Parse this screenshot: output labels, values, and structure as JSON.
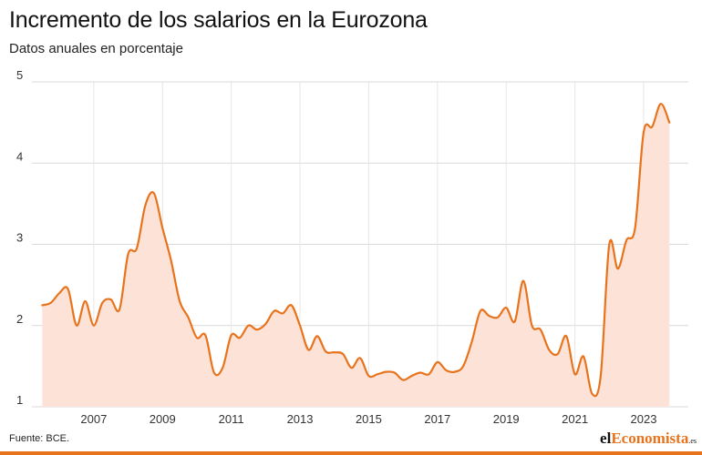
{
  "title": "Incremento de los salarios en la Eurozona",
  "subtitle": "Datos anuales en porcentaje",
  "source": "Fuente: BCE.",
  "logo": {
    "prefix": "el",
    "accent": "Economista",
    "tld": ".es"
  },
  "colors": {
    "line": "#e8731d",
    "fill": "#fde3d7",
    "grid": "#d9d9d9",
    "bottom_bar": "#e8731d"
  },
  "chart_data": {
    "type": "area",
    "title": "Incremento de los salarios en la Eurozona",
    "subtitle": "Datos anuales en porcentaje",
    "xlabel": "",
    "ylabel": "",
    "xlim": [
      2005.2,
      2024.3
    ],
    "ylim": [
      1,
      5
    ],
    "y_ticks": [
      1,
      2,
      3,
      4,
      5
    ],
    "x_ticks": [
      2007,
      2009,
      2011,
      2013,
      2015,
      2017,
      2019,
      2021,
      2023
    ],
    "grid": true,
    "series": [
      {
        "x": [
          2005.5,
          2005.75,
          2006.0,
          2006.25,
          2006.5,
          2006.75,
          2007.0,
          2007.25,
          2007.5,
          2007.75,
          2008.0,
          2008.25,
          2008.5,
          2008.75,
          2009.0,
          2009.25,
          2009.5,
          2009.75,
          2010.0,
          2010.25,
          2010.5,
          2010.75,
          2011.0,
          2011.25,
          2011.5,
          2011.75,
          2012.0,
          2012.25,
          2012.5,
          2012.75,
          2013.0,
          2013.25,
          2013.5,
          2013.75,
          2014.0,
          2014.25,
          2014.5,
          2014.75,
          2015.0,
          2015.25,
          2015.5,
          2015.75,
          2016.0,
          2016.25,
          2016.5,
          2016.75,
          2017.0,
          2017.25,
          2017.5,
          2017.75,
          2018.0,
          2018.25,
          2018.5,
          2018.75,
          2019.0,
          2019.25,
          2019.5,
          2019.75,
          2020.0,
          2020.25,
          2020.5,
          2020.75,
          2021.0,
          2021.25,
          2021.5,
          2021.75,
          2022.0,
          2022.25,
          2022.5,
          2022.75,
          2023.0,
          2023.25,
          2023.5,
          2023.75
        ],
        "values": [
          2.25,
          2.28,
          2.4,
          2.45,
          2.0,
          2.3,
          2.0,
          2.28,
          2.32,
          2.2,
          2.88,
          2.95,
          3.48,
          3.63,
          3.2,
          2.8,
          2.3,
          2.1,
          1.85,
          1.88,
          1.42,
          1.48,
          1.88,
          1.85,
          2.0,
          1.95,
          2.02,
          2.18,
          2.15,
          2.25,
          2.0,
          1.7,
          1.87,
          1.68,
          1.67,
          1.65,
          1.48,
          1.6,
          1.38,
          1.4,
          1.43,
          1.42,
          1.33,
          1.38,
          1.42,
          1.4,
          1.55,
          1.45,
          1.43,
          1.5,
          1.8,
          2.18,
          2.12,
          2.1,
          2.22,
          2.05,
          2.55,
          2.0,
          1.95,
          1.7,
          1.65,
          1.87,
          1.4,
          1.62,
          1.16,
          1.38,
          3.0,
          2.7,
          3.05,
          3.2,
          4.38,
          4.45,
          4.73,
          4.5
        ]
      }
    ]
  }
}
